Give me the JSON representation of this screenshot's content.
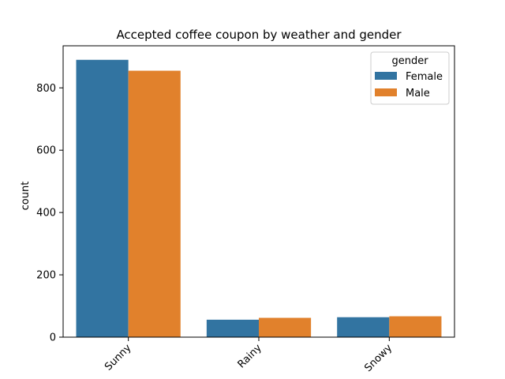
{
  "chart_data": {
    "type": "bar",
    "title": "Accepted coffee coupon by weather and gender",
    "xlabel": "",
    "ylabel": "count",
    "categories": [
      "Sunny",
      "Rainy",
      "Snowy"
    ],
    "ylim": [
      0,
      935
    ],
    "yticks": [
      0,
      200,
      400,
      600,
      800
    ],
    "grid": false,
    "legend": {
      "title": "gender",
      "placement": "top-right"
    },
    "series": [
      {
        "name": "Female",
        "color": "#3274a1",
        "values": [
          890,
          56,
          64
        ]
      },
      {
        "name": "Male",
        "color": "#e1812c",
        "values": [
          855,
          62,
          67
        ]
      }
    ]
  }
}
